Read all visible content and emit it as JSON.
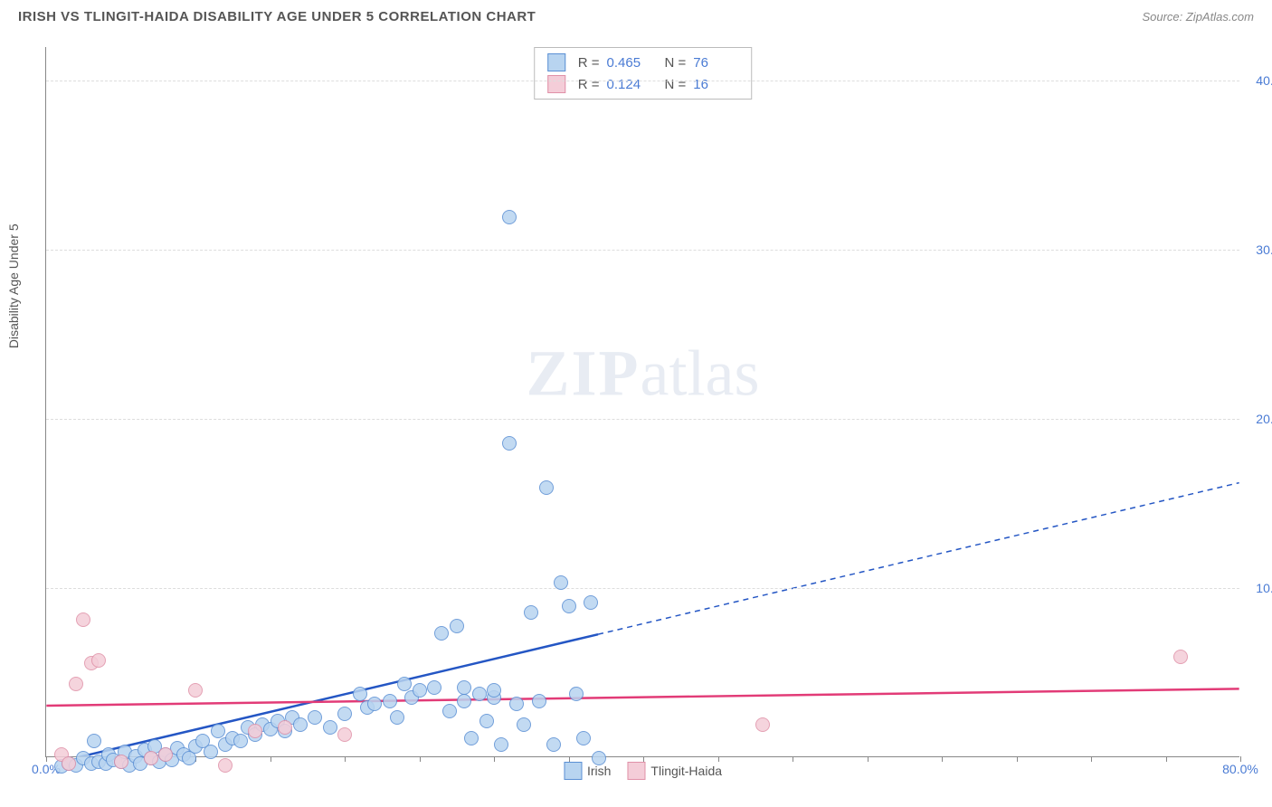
{
  "header": {
    "title": "IRISH VS TLINGIT-HAIDA DISABILITY AGE UNDER 5 CORRELATION CHART",
    "source_prefix": "Source: ",
    "source": "ZipAtlas.com"
  },
  "chart": {
    "type": "scatter",
    "y_axis_title": "Disability Age Under 5",
    "watermark_bold": "ZIP",
    "watermark_rest": "atlas",
    "background_color": "#ffffff",
    "grid_color": "#dddddd",
    "axis_color": "#888888",
    "xlim": [
      0,
      80
    ],
    "ylim": [
      0,
      42
    ],
    "x_labels": [
      {
        "v": 0,
        "t": "0.0%"
      },
      {
        "v": 80,
        "t": "80.0%"
      }
    ],
    "y_labels": [
      {
        "v": 10,
        "t": "10.0%"
      },
      {
        "v": 20,
        "t": "20.0%"
      },
      {
        "v": 30,
        "t": "30.0%"
      },
      {
        "v": 40,
        "t": "40.0%"
      }
    ],
    "x_ticks": [
      0,
      5,
      10,
      15,
      20,
      25,
      30,
      35,
      40,
      45,
      50,
      55,
      60,
      65,
      70,
      75,
      80
    ],
    "point_radius": 8,
    "series": [
      {
        "name": "Irish",
        "fill": "#b8d4f0",
        "stroke": "#5a8fd4",
        "trend_color": "#2456c4",
        "trend_solid_end_x": 37,
        "trend_y0": -0.5,
        "trend_y80": 16.2,
        "r_label": "R =",
        "r_value": "0.465",
        "n_label": "N =",
        "n_value": "76",
        "points": [
          [
            1,
            0.3
          ],
          [
            1.5,
            0.5
          ],
          [
            2,
            0.4
          ],
          [
            2.5,
            0.8
          ],
          [
            3,
            0.5
          ],
          [
            3.2,
            1.8
          ],
          [
            3.5,
            0.6
          ],
          [
            4,
            0.5
          ],
          [
            4.2,
            1.0
          ],
          [
            4.5,
            0.7
          ],
          [
            5,
            0.6
          ],
          [
            5.3,
            1.2
          ],
          [
            5.6,
            0.4
          ],
          [
            6,
            0.9
          ],
          [
            6.3,
            0.5
          ],
          [
            6.6,
            1.3
          ],
          [
            7,
            0.8
          ],
          [
            7.3,
            1.5
          ],
          [
            7.6,
            0.6
          ],
          [
            8,
            1.0
          ],
          [
            8.4,
            0.7
          ],
          [
            8.8,
            1.4
          ],
          [
            9.2,
            1.0
          ],
          [
            9.6,
            0.8
          ],
          [
            10,
            1.5
          ],
          [
            10.5,
            1.8
          ],
          [
            11,
            1.2
          ],
          [
            11.5,
            2.4
          ],
          [
            12,
            1.6
          ],
          [
            12.5,
            2.0
          ],
          [
            13,
            1.8
          ],
          [
            13.5,
            2.6
          ],
          [
            14,
            2.2
          ],
          [
            14.5,
            2.8
          ],
          [
            15,
            2.5
          ],
          [
            15.5,
            3.0
          ],
          [
            16,
            2.4
          ],
          [
            16.5,
            3.2
          ],
          [
            17,
            2.8
          ],
          [
            18,
            3.2
          ],
          [
            19,
            2.6
          ],
          [
            20,
            3.4
          ],
          [
            21,
            4.6
          ],
          [
            21.5,
            3.8
          ],
          [
            22,
            4.0
          ],
          [
            23,
            4.2
          ],
          [
            23.5,
            3.2
          ],
          [
            24,
            5.2
          ],
          [
            24.5,
            4.4
          ],
          [
            25,
            4.8
          ],
          [
            26,
            5.0
          ],
          [
            26.5,
            8.2
          ],
          [
            27,
            3.6
          ],
          [
            27.5,
            8.6
          ],
          [
            28,
            4.2
          ],
          [
            28.5,
            2.0
          ],
          [
            29,
            4.6
          ],
          [
            29.5,
            3.0
          ],
          [
            30,
            4.4
          ],
          [
            30.5,
            1.6
          ],
          [
            31,
            19.4
          ],
          [
            31.5,
            4.0
          ],
          [
            31,
            32.8
          ],
          [
            32,
            2.8
          ],
          [
            32.5,
            9.4
          ],
          [
            33,
            4.2
          ],
          [
            33.5,
            16.8
          ],
          [
            34,
            1.6
          ],
          [
            34.5,
            11.2
          ],
          [
            35,
            9.8
          ],
          [
            35.5,
            4.6
          ],
          [
            36,
            2.0
          ],
          [
            36.5,
            10.0
          ],
          [
            37,
            0.8
          ],
          [
            30,
            4.8
          ],
          [
            28,
            5.0
          ]
        ]
      },
      {
        "name": "Tlingit-Haida",
        "fill": "#f4cdd8",
        "stroke": "#e091a8",
        "trend_color": "#e23b77",
        "trend_solid_end_x": 80,
        "trend_y0": 3.0,
        "trend_y80": 4.0,
        "r_label": "R =",
        "r_value": "0.124",
        "n_label": "N =",
        "n_value": "16",
        "points": [
          [
            1,
            1.0
          ],
          [
            1.5,
            0.5
          ],
          [
            2,
            5.2
          ],
          [
            2.5,
            9.0
          ],
          [
            3,
            6.4
          ],
          [
            3.5,
            6.6
          ],
          [
            5,
            0.6
          ],
          [
            7,
            0.8
          ],
          [
            8,
            1.0
          ],
          [
            10,
            4.8
          ],
          [
            12,
            0.4
          ],
          [
            14,
            2.4
          ],
          [
            16,
            2.6
          ],
          [
            20,
            2.2
          ],
          [
            48,
            2.8
          ],
          [
            76,
            6.8
          ]
        ]
      }
    ],
    "bottom_legend": [
      {
        "label": "Irish",
        "fill": "#b8d4f0",
        "stroke": "#5a8fd4"
      },
      {
        "label": "Tlingit-Haida",
        "fill": "#f4cdd8",
        "stroke": "#e091a8"
      }
    ]
  }
}
